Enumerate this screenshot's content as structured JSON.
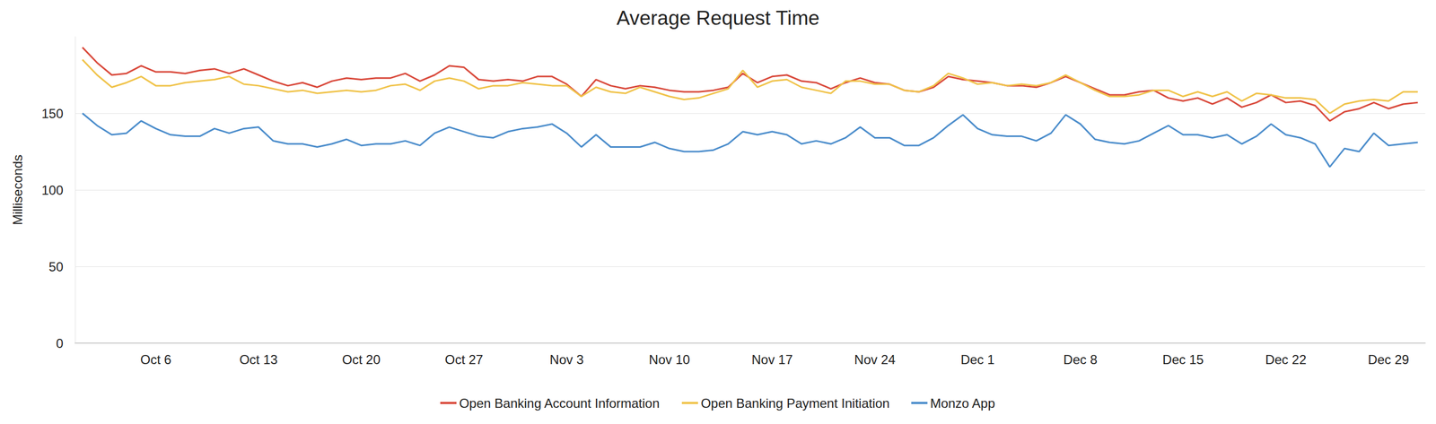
{
  "chart_data": {
    "type": "line",
    "title": "Average Request Time",
    "y_label": "Milliseconds",
    "categories": [
      null,
      null,
      null,
      null,
      null,
      "Oct 6",
      null,
      null,
      null,
      null,
      null,
      null,
      "Oct 13",
      null,
      null,
      null,
      null,
      null,
      null,
      "Oct 20",
      null,
      null,
      null,
      null,
      null,
      null,
      "Oct 27",
      null,
      null,
      null,
      null,
      null,
      null,
      "Nov 3",
      null,
      null,
      null,
      null,
      null,
      null,
      "Nov 10",
      null,
      null,
      null,
      null,
      null,
      null,
      "Nov 17",
      null,
      null,
      null,
      null,
      null,
      null,
      "Nov 24",
      null,
      null,
      null,
      null,
      null,
      null,
      "Dec 1",
      null,
      null,
      null,
      null,
      null,
      null,
      "Dec 8",
      null,
      null,
      null,
      null,
      null,
      null,
      "Dec 15",
      null,
      null,
      null,
      null,
      null,
      null,
      "Dec 22",
      null,
      null,
      null,
      null,
      null,
      null,
      "Dec 29",
      null,
      null
    ],
    "series": [
      {
        "name": "Open Banking Account Information",
        "color": "#d9493b",
        "values": [
          193,
          183,
          175,
          176,
          181,
          177,
          177,
          176,
          178,
          179,
          176,
          179,
          175,
          171,
          168,
          170,
          167,
          171,
          173,
          172,
          173,
          173,
          176,
          171,
          175,
          181,
          180,
          172,
          171,
          172,
          171,
          174,
          174,
          169,
          161,
          172,
          168,
          166,
          168,
          167,
          165,
          164,
          164,
          165,
          167,
          176,
          170,
          174,
          175,
          171,
          170,
          166,
          170,
          173,
          170,
          169,
          165,
          164,
          167,
          174,
          172,
          171,
          170,
          168,
          168,
          167,
          170,
          174,
          170,
          166,
          162,
          162,
          164,
          165,
          160,
          158,
          160,
          156,
          160,
          154,
          157,
          162,
          157,
          158,
          155,
          145,
          151,
          153,
          157,
          153,
          156,
          157
        ]
      },
      {
        "name": "Open Banking Payment Initiation",
        "color": "#f0c34a",
        "values": [
          185,
          175,
          167,
          170,
          174,
          168,
          168,
          170,
          171,
          172,
          174,
          169,
          168,
          166,
          164,
          165,
          163,
          164,
          165,
          164,
          165,
          168,
          169,
          165,
          171,
          173,
          171,
          166,
          168,
          168,
          170,
          169,
          168,
          168,
          161,
          167,
          164,
          163,
          167,
          164,
          161,
          159,
          160,
          163,
          166,
          178,
          167,
          171,
          172,
          167,
          165,
          163,
          171,
          171,
          169,
          169,
          165,
          164,
          168,
          176,
          173,
          169,
          170,
          168,
          169,
          168,
          170,
          175,
          170,
          165,
          161,
          161,
          162,
          165,
          165,
          161,
          164,
          161,
          164,
          158,
          163,
          162,
          160,
          160,
          159,
          150,
          156,
          158,
          159,
          158,
          164,
          164
        ]
      },
      {
        "name": "Monzo App",
        "color": "#4a8ccb",
        "values": [
          150,
          142,
          136,
          137,
          145,
          140,
          136,
          135,
          135,
          140,
          137,
          140,
          141,
          132,
          130,
          130,
          128,
          130,
          133,
          129,
          130,
          130,
          132,
          129,
          137,
          141,
          138,
          135,
          134,
          138,
          140,
          141,
          143,
          137,
          128,
          136,
          128,
          128,
          128,
          131,
          127,
          125,
          125,
          126,
          130,
          138,
          136,
          138,
          136,
          130,
          132,
          130,
          134,
          141,
          134,
          134,
          129,
          129,
          134,
          142,
          149,
          140,
          136,
          135,
          135,
          132,
          137,
          149,
          143,
          133,
          131,
          130,
          132,
          137,
          142,
          136,
          136,
          134,
          136,
          130,
          135,
          143,
          136,
          134,
          130,
          115,
          127,
          125,
          137,
          129,
          130,
          131
        ]
      }
    ],
    "ylim": [
      0,
      200
    ],
    "yticks": [
      0,
      50,
      100,
      150
    ],
    "grid": true,
    "legend": "bottom"
  }
}
